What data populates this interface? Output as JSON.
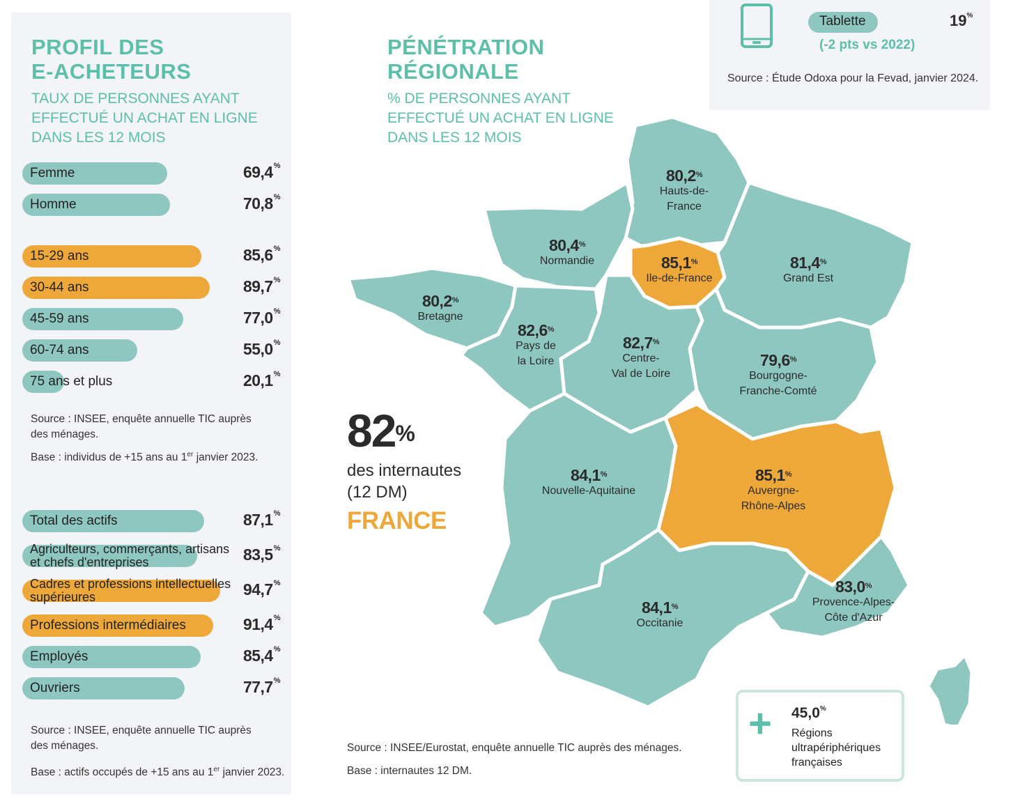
{
  "left_panel": {
    "title_line1": "PROFIL DES",
    "title_line2": "E-ACHETEURS",
    "subtitle_line1": "TAUX DE PERSONNES AYANT",
    "subtitle_line2": "EFFECTUÉ UN ACHAT EN LIGNE",
    "subtitle_line3": "DANS LES 12 MOIS",
    "source1_line1": "Source : INSEE, enquête annuelle TIC auprès",
    "source1_line2": "des ménages.",
    "base1_pre": "Base : individus de +15 ans au 1",
    "base1_sup": "er",
    "base1_post": " janvier 2023.",
    "source2_line1": "Source : INSEE, enquête annuelle TIC auprès",
    "source2_line2": "des ménages.",
    "base2_pre": "Base : actifs occupés de +15 ans au 1",
    "base2_sup": "er",
    "base2_post": " janvier 2023."
  },
  "map_panel": {
    "title_line1": "PÉNÉTRATION",
    "title_line2": "RÉGIONALE",
    "subtitle_line1": "% DE PERSONNES AYANT",
    "subtitle_line2": "EFFECTUÉ UN ACHAT EN LIGNE",
    "subtitle_line3": "DANS LES 12 MOIS",
    "big_value": "82",
    "big_unit": "%",
    "big_line1": "des internautes",
    "big_line2": "(12 DM)",
    "big_country": "FRANCE",
    "source": "Source : INSEE/Eurostat, enquête annuelle TIC auprès des ménages.",
    "base": "Base : internautes 12 DM."
  },
  "drom_box": {
    "value": "45,0",
    "unit": "%",
    "line1": "Régions",
    "line2": "ultrapériphériques",
    "line3": "françaises",
    "icon": "plus-icon"
  },
  "top_panel": {
    "icon": "tablet-icon",
    "label": "Tablette",
    "value": "19",
    "unit": "%",
    "delta": "(-2 pts vs 2022)",
    "source": "Source : Étude Odoxa pour la Fevad, janvier 2024."
  },
  "colors": {
    "teal": "#8ec7bf",
    "orange": "#eea83a",
    "heading": "#5bbfa9"
  },
  "chart_data": [
    {
      "type": "bar",
      "orientation": "horizontal",
      "categories": [
        "Femme",
        "Homme"
      ],
      "values": [
        69.4,
        70.8
      ],
      "labels": [
        "69,4",
        "70,8"
      ],
      "unit": "%",
      "highlight": [
        false,
        false
      ]
    },
    {
      "type": "bar",
      "orientation": "horizontal",
      "categories": [
        "15-29 ans",
        "30-44 ans",
        "45-59 ans",
        "60-74 ans",
        "75 ans et plus"
      ],
      "values": [
        85.6,
        89.7,
        77.0,
        55.0,
        20.1
      ],
      "labels": [
        "85,6",
        "89,7",
        "77,0",
        "55,0",
        "20,1"
      ],
      "unit": "%",
      "highlight": [
        true,
        true,
        false,
        false,
        false
      ]
    },
    {
      "type": "bar",
      "orientation": "horizontal",
      "categories": [
        "Total des actifs",
        "Agriculteurs, commerçants, artisans et chefs d'entreprises",
        "Cadres et professions intellectuelles supérieures",
        "Professions intermédiaires",
        "Employés",
        "Ouvriers"
      ],
      "values": [
        87.1,
        83.5,
        94.7,
        91.4,
        85.4,
        77.7
      ],
      "labels": [
        "87,1",
        "83,5",
        "94,7",
        "91,4",
        "85,4",
        "77,7"
      ],
      "unit": "%",
      "highlight": [
        false,
        false,
        true,
        true,
        false,
        false
      ]
    },
    {
      "type": "map",
      "regions": [
        {
          "name": "Hauts-de-France",
          "value": 80.2,
          "label": "80,2",
          "highlight": false
        },
        {
          "name": "Normandie",
          "value": 80.4,
          "label": "80,4",
          "highlight": false
        },
        {
          "name": "Ile-de-France",
          "value": 85.1,
          "label": "85,1",
          "highlight": true
        },
        {
          "name": "Grand Est",
          "value": 81.4,
          "label": "81,4",
          "highlight": false
        },
        {
          "name": "Bretagne",
          "value": 80.2,
          "label": "80,2",
          "highlight": false
        },
        {
          "name": "Pays de la Loire",
          "value": 82.6,
          "label": "82,6",
          "highlight": false
        },
        {
          "name": "Centre-Val de Loire",
          "value": 82.7,
          "label": "82,7",
          "highlight": false
        },
        {
          "name": "Bourgogne-Franche-Comté",
          "value": 79.6,
          "label": "79,6",
          "highlight": false
        },
        {
          "name": "Nouvelle-Aquitaine",
          "value": 84.1,
          "label": "84,1",
          "highlight": false
        },
        {
          "name": "Auvergne-Rhône-Alpes",
          "value": 85.1,
          "label": "85,1",
          "highlight": true
        },
        {
          "name": "Occitanie",
          "value": 84.1,
          "label": "84,1",
          "highlight": false
        },
        {
          "name": "Provence-Alpes-Côte d'Azur",
          "value": 83.0,
          "label": "83,0",
          "highlight": false
        }
      ],
      "region_lines": [
        {
          "line1": "Hauts-de-",
          "line2": "France"
        },
        {
          "line1": "Normandie",
          "line2": ""
        },
        {
          "line1": "Ile-de-France",
          "line2": ""
        },
        {
          "line1": "Grand Est",
          "line2": ""
        },
        {
          "line1": "Bretagne",
          "line2": ""
        },
        {
          "line1": "Pays de",
          "line2": "la Loire"
        },
        {
          "line1": "Centre-",
          "line2": "Val de Loire"
        },
        {
          "line1": "Bourgogne-",
          "line2": "Franche-Comté"
        },
        {
          "line1": "Nouvelle-Aquitaine",
          "line2": ""
        },
        {
          "line1": "Auvergne-",
          "line2": "Rhône-Alpes"
        },
        {
          "line1": "Occitanie",
          "line2": ""
        },
        {
          "line1": "Provence-Alpes-",
          "line2": "Côte d'Azur"
        }
      ],
      "unit": "%"
    }
  ]
}
